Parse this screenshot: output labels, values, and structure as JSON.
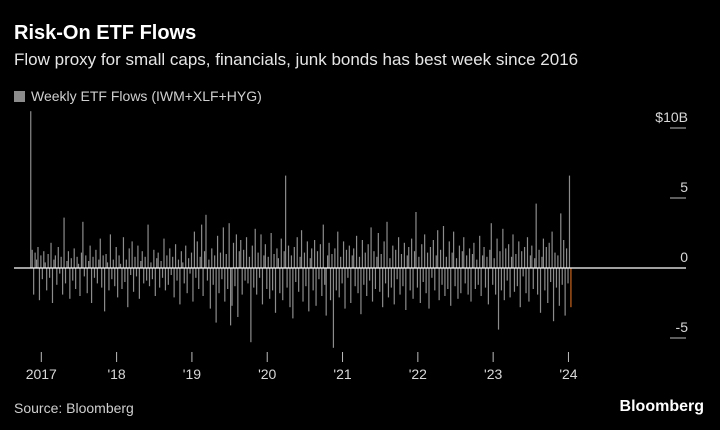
{
  "header": {
    "title": "Risk-On ETF Flows",
    "subtitle": "Flow proxy for small caps, financials, junk bonds has best week since 2016"
  },
  "legend": {
    "label": "Weekly ETF Flows (IWM+XLF+HYG)"
  },
  "footer": {
    "source": "Source: Bloomberg",
    "brand": "Bloomberg"
  },
  "colors": {
    "background": "#000000",
    "bars": "#8c8c8c",
    "highlight": "#c8641e",
    "zero_line": "#ffffff"
  },
  "chart_data": {
    "type": "bar",
    "title": "Risk-On ETF Flows",
    "subtitle": "Flow proxy for small caps, financials, junk bonds has best week since 2016",
    "series_name": "Weekly ETF Flows (IWM+XLF+HYG)",
    "unit": "$B",
    "x_range": [
      2016.85,
      2024.95
    ],
    "ylim": [
      -6,
      11.5
    ],
    "y_ticks": [
      {
        "value": 10,
        "label": "$10B"
      },
      {
        "value": 5,
        "label": "5"
      },
      {
        "value": 0,
        "label": "0"
      },
      {
        "value": -5,
        "label": "-5"
      }
    ],
    "x_ticks": [
      {
        "value": 2017,
        "label": "2017"
      },
      {
        "value": 2018,
        "label": "'18"
      },
      {
        "value": 2019,
        "label": "'19"
      },
      {
        "value": 2020,
        "label": "'20"
      },
      {
        "value": 2021,
        "label": "'21"
      },
      {
        "value": 2022,
        "label": "'22"
      },
      {
        "value": 2023,
        "label": "'23"
      },
      {
        "value": 2024,
        "label": "'24"
      }
    ],
    "grid": false,
    "start_year": 2016.86,
    "week_step": 0.01923,
    "values": [
      11.2,
      1.3,
      -1.9,
      1.1,
      0.6,
      1.5,
      -2.3,
      0.9,
      -0.8,
      1.2,
      0.4,
      -1.6,
      1.0,
      -0.7,
      1.8,
      -2.5,
      0.6,
      0.9,
      -1.2,
      1.5,
      -0.4,
      0.8,
      -1.9,
      3.6,
      -1.1,
      0.5,
      1.2,
      -2.2,
      0.7,
      -0.9,
      1.4,
      -1.5,
      0.8,
      0.3,
      -2.0,
      1.1,
      3.3,
      -0.6,
      0.9,
      -1.8,
      0.5,
      1.6,
      -2.5,
      0.8,
      -0.7,
      1.3,
      -1.1,
      0.6,
      2.1,
      -1.4,
      0.9,
      -3.1,
      1.0,
      0.4,
      -1.6,
      2.4,
      -0.8,
      0.6,
      -1.3,
      1.5,
      -2.1,
      0.9,
      0.3,
      -1.5,
      2.2,
      -1.0,
      0.6,
      -2.8,
      1.4,
      -0.5,
      1.9,
      -1.7,
      0.8,
      -0.6,
      1.6,
      -2.2,
      0.5,
      1.2,
      -1.1,
      0.8,
      -0.9,
      3.1,
      -1.3,
      0.4,
      -0.8,
      1.3,
      -2.0,
      0.7,
      1.1,
      -1.4,
      0.5,
      -0.7,
      2.1,
      -1.6,
      0.9,
      -1.2,
      1.4,
      -0.5,
      0.8,
      -2.1,
      1.7,
      -0.9,
      0.6,
      -2.6,
      1.2,
      0.4,
      -1.1,
      1.6,
      -1.8,
      0.7,
      -0.4,
      1.1,
      -2.4,
      2.6,
      -0.7,
      1.9,
      -1.5,
      0.8,
      3.1,
      -2.0,
      1.2,
      3.8,
      -0.9,
      0.6,
      -2.9,
      1.4,
      -1.2,
      0.9,
      -3.9,
      2.3,
      -1.8,
      1.1,
      -0.8,
      2.9,
      -2.4,
      1.0,
      -1.5,
      3.2,
      -4.1,
      -2.7,
      1.8,
      -1.3,
      2.4,
      -3.5,
      1.2,
      2.0,
      -1.9,
      1.3,
      -0.9,
      2.2,
      -1.1,
      0.8,
      -5.3,
      1.6,
      -1.4,
      2.8,
      -1.9,
      1.1,
      -0.7,
      2.4,
      -2.6,
      0.9,
      1.7,
      -1.5,
      0.8,
      -2.2,
      2.5,
      -1.6,
      1.0,
      -3.2,
      1.4,
      0.7,
      -1.8,
      2.1,
      -2.3,
      1.2,
      6.6,
      -1.4,
      1.6,
      -2.8,
      0.9,
      -3.6,
      1.5,
      -1.0,
      2.2,
      -1.7,
      0.8,
      2.7,
      -2.4,
      1.1,
      -1.3,
      1.9,
      -3.1,
      0.7,
      1.4,
      -1.6,
      2.0,
      -2.7,
      1.2,
      -0.8,
      1.7,
      -2.0,
      3.1,
      -1.2,
      -3.4,
      0.9,
      1.8,
      -2.3,
      1.0,
      -5.7,
      1.4,
      -1.6,
      2.6,
      -2.1,
      0.8,
      -1.1,
      1.9,
      -2.9,
      1.3,
      -0.7,
      1.6,
      -2.5,
      0.9,
      1.4,
      -1.3,
      2.3,
      -1.8,
      0.8,
      -3.3,
      2.0,
      -1.2,
      1.1,
      -2.0,
      1.7,
      -0.9,
      2.9,
      -2.4,
      1.2,
      -1.5,
      0.8,
      2.5,
      -1.7,
      1.0,
      -2.8,
      1.9,
      -1.1,
      3.3,
      -2.1,
      0.7,
      -1.4,
      1.6,
      -2.6,
      1.3,
      -0.8,
      2.2,
      -1.9,
      1.0,
      -1.3,
      1.8,
      -3.0,
      0.9,
      1.5,
      -1.6,
      2.1,
      -2.2,
      1.2,
      4.0,
      -1.4,
      0.8,
      -2.5,
      1.7,
      -1.0,
      2.4,
      -1.8,
      1.1,
      -2.9,
      1.5,
      -0.7,
      2.0,
      -1.6,
      0.9,
      2.7,
      -2.3,
      1.3,
      -1.2,
      3.0,
      -2.0,
      0.8,
      -1.5,
      1.9,
      -2.7,
      1.1,
      2.6,
      -1.3,
      0.7,
      -2.2,
      1.6,
      -1.8,
      1.2,
      2.2,
      -1.1,
      0.9,
      -1.9,
      1.4,
      -2.4,
      1.0,
      1.8,
      -1.5,
      0.6,
      -1.2,
      2.3,
      -2.0,
      0.9,
      1.5,
      -1.4,
      0.8,
      -2.6,
      1.3,
      3.2,
      -1.2,
      0.7,
      -1.9,
      2.1,
      -4.4,
      1.2,
      -1.6,
      2.8,
      -2.3,
      1.4,
      -0.9,
      1.7,
      -2.1,
      0.8,
      2.4,
      -1.7,
      1.0,
      -1.3,
      1.9,
      -2.8,
      1.2,
      -0.6,
      1.5,
      -1.8,
      2.2,
      -2.4,
      0.9,
      1.6,
      -1.5,
      0.7,
      4.6,
      -1.9,
      1.3,
      -3.2,
      0.8,
      2.1,
      -1.6,
      1.5,
      -2.5,
      1.8,
      -1.0,
      2.6,
      -3.8,
      1.1,
      -1.4,
      0.9,
      -2.7,
      3.9,
      -1.2,
      2.0,
      -3.4,
      1.4,
      -1.1,
      6.6,
      -2.8
    ]
  }
}
